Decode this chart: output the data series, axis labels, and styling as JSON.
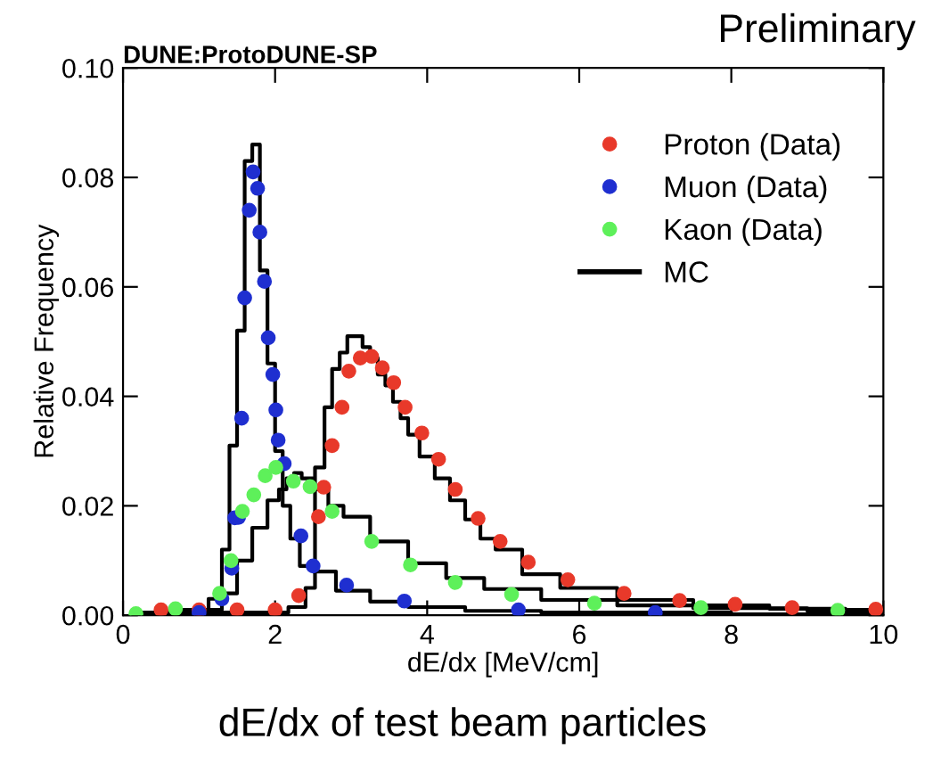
{
  "chart_data": {
    "type": "scatter",
    "title": "DUNE:ProtoDUNE-SP",
    "xlabel": "dE/dx [MeV/cm]",
    "ylabel": "Relative Frequency",
    "annotations": [
      "Preliminary",
      "dE/dx of test beam particles"
    ],
    "xlim": [
      0,
      10
    ],
    "xticks": [
      0,
      2,
      4,
      6,
      8,
      10
    ],
    "ylim": [
      0,
      0.1
    ],
    "yticks": [
      {
        "value": 0,
        "label": "0.00"
      },
      {
        "value": 0.02,
        "label": "0.02"
      },
      {
        "value": 0.04,
        "label": "0.04"
      },
      {
        "value": 0.06,
        "label": "0.06"
      },
      {
        "value": 0.08,
        "label": "0.08"
      },
      {
        "value": 0.1,
        "label": "0.10"
      }
    ],
    "grid": false,
    "legend": "top right",
    "series": [
      {
        "name": "Proton (Data)",
        "marker": "circle",
        "color": "#e8392a",
        "x": [
          0.5,
          1.0,
          1.5,
          2.0,
          2.31,
          2.57,
          2.64,
          2.75,
          2.88,
          2.97,
          3.12,
          3.27,
          3.41,
          3.56,
          3.71,
          3.93,
          4.15,
          4.37,
          4.67,
          4.96,
          5.33,
          5.85,
          6.59,
          7.32,
          8.05,
          8.8,
          9.9
        ],
        "values": [
          0.001,
          0.001,
          0.001,
          0.001,
          0.0036,
          0.018,
          0.0234,
          0.031,
          0.038,
          0.0446,
          0.047,
          0.0473,
          0.0452,
          0.0425,
          0.038,
          0.0333,
          0.0285,
          0.023,
          0.0177,
          0.0135,
          0.0097,
          0.0065,
          0.004,
          0.0027,
          0.002,
          0.0014,
          0.0011
        ]
      },
      {
        "name": "Muon (Data)",
        "marker": "circle",
        "color": "#1f2fd0",
        "x": [
          1.0,
          1.3,
          1.43,
          1.47,
          1.52,
          1.56,
          1.6,
          1.66,
          1.71,
          1.77,
          1.8,
          1.86,
          1.91,
          1.97,
          2.01,
          2.04,
          2.12,
          2.34,
          2.5,
          2.94,
          3.7,
          5.2,
          7.0
        ],
        "values": [
          0.0005,
          0.003,
          0.0086,
          0.0178,
          0.0179,
          0.036,
          0.058,
          0.074,
          0.081,
          0.078,
          0.07,
          0.061,
          0.0507,
          0.044,
          0.0375,
          0.032,
          0.0277,
          0.0145,
          0.009,
          0.0055,
          0.0026,
          0.001,
          0.0005
        ]
      },
      {
        "name": "Kaon (Data)",
        "marker": "circle",
        "color": "#5ef05a",
        "x": [
          0.17,
          0.69,
          1.27,
          1.42,
          1.57,
          1.72,
          1.87,
          2.01,
          2.24,
          2.46,
          2.75,
          3.27,
          3.78,
          4.37,
          5.11,
          6.2,
          7.6,
          9.4
        ],
        "values": [
          0.0003,
          0.0012,
          0.004,
          0.01,
          0.019,
          0.022,
          0.0255,
          0.027,
          0.0245,
          0.0235,
          0.019,
          0.0135,
          0.0092,
          0.006,
          0.0038,
          0.0022,
          0.0014,
          0.0009
        ]
      },
      {
        "name": "MC",
        "type": "step",
        "marker": "none",
        "color": "#000000",
        "x": [
          0.2,
          1.0,
          1.25,
          1.35,
          1.45,
          1.55,
          1.65,
          1.75,
          1.85,
          1.95,
          2.05,
          2.15,
          2.25,
          2.4,
          2.6,
          3.0,
          3.5,
          4.0,
          5.0,
          6.0,
          10.0
        ],
        "values": [
          0.0003,
          0.0005,
          0.003,
          0.012,
          0.031,
          0.052,
          0.083,
          0.086,
          0.063,
          0.046,
          0.03,
          0.02,
          0.014,
          0.009,
          0.008,
          0.0045,
          0.0025,
          0.0015,
          0.0008,
          0.0005,
          0.0002
        ]
      },
      {
        "type": "step",
        "marker": "none",
        "color": "#000000",
        "x": [
          0.2,
          1.0,
          2.0,
          2.35,
          2.45,
          2.6,
          2.7,
          2.8,
          2.9,
          3.0,
          3.1,
          3.2,
          3.3,
          3.4,
          3.5,
          3.6,
          3.7,
          3.8,
          4.0,
          4.2,
          4.4,
          4.6,
          4.8,
          5.0,
          5.5,
          6.0,
          7.0,
          8.0,
          9.0,
          10.0
        ],
        "values": [
          0.0005,
          0.0005,
          0.0005,
          0.0015,
          0.005,
          0.027,
          0.038,
          0.045,
          0.048,
          0.051,
          0.051,
          0.049,
          0.047,
          0.044,
          0.042,
          0.039,
          0.036,
          0.033,
          0.029,
          0.025,
          0.021,
          0.0175,
          0.014,
          0.012,
          0.0075,
          0.005,
          0.0028,
          0.0018,
          0.0012,
          0.001
        ]
      },
      {
        "type": "step",
        "marker": "none",
        "color": "#000000",
        "x": [
          0.2,
          1.2,
          1.4,
          1.6,
          1.8,
          2.0,
          2.1,
          2.2,
          2.3,
          2.4,
          2.6,
          2.8,
          3.0,
          3.5,
          4.0,
          4.5,
          5.0,
          6.0,
          7.0,
          8.0,
          10.0
        ],
        "values": [
          0.0005,
          0.001,
          0.004,
          0.01,
          0.016,
          0.021,
          0.023,
          0.025,
          0.026,
          0.025,
          0.023,
          0.02,
          0.018,
          0.0135,
          0.0095,
          0.0068,
          0.0048,
          0.0028,
          0.0018,
          0.0013,
          0.0008
        ]
      }
    ]
  }
}
